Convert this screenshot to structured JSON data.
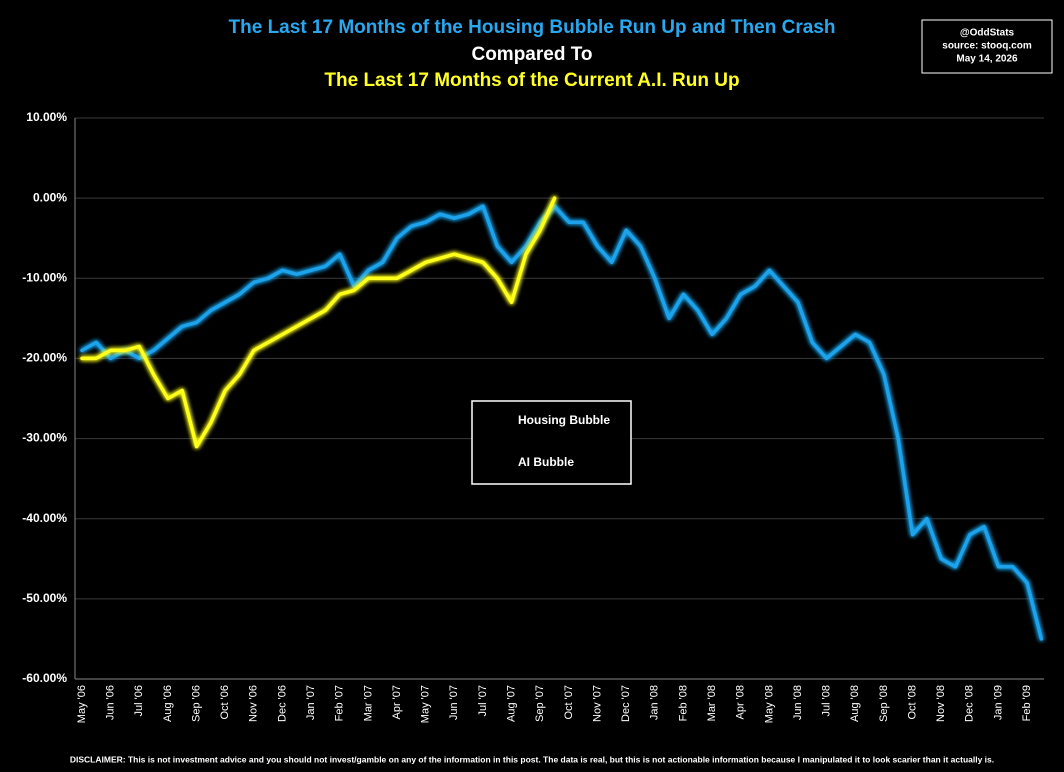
{
  "chart_data": {
    "type": "line",
    "title_lines": [
      "The Last 17 Months of the Housing Bubble Run Up and Then Crash",
      "Compared To",
      "The Last 17 Months of the Current A.I. Run Up"
    ],
    "source_box": [
      "@OddStats",
      "source: stooq.com",
      "May 14, 2026"
    ],
    "disclaimer": "DISCLAIMER: This is not investment advice and you should not invest/gamble on any of the information in this post.   The data is real, but this is not actionable information because I manipulated it to look scarier than it actually is.",
    "categories": [
      "May '06",
      null,
      "Jun '06",
      null,
      "Jul '06",
      null,
      "Aug '06",
      null,
      "Sep '06",
      null,
      "Oct '06",
      null,
      "Nov '06",
      null,
      "Dec '06",
      null,
      "Jan '07",
      null,
      "Feb '07",
      null,
      "Mar '07",
      null,
      "Apr '07",
      null,
      "May '07",
      null,
      "Jun '07",
      null,
      "Jul '07",
      null,
      "Aug '07",
      null,
      "Sep '07",
      null,
      "Oct '07",
      null,
      "Nov '07",
      null,
      "Dec '07",
      null,
      "Jan '08",
      null,
      "Feb '08",
      null,
      "Mar '08",
      null,
      "Apr '08",
      null,
      "May '08",
      null,
      "Jun '08",
      null,
      "Jul '08",
      null,
      "Aug '08",
      null,
      "Sep '08",
      null,
      "Oct '08",
      null,
      "Nov '08",
      null,
      "Dec '08",
      null,
      "Jan '09",
      null,
      "Feb '09",
      null
    ],
    "series": [
      {
        "name": "Housing Bubble",
        "color": "#1fa3ec",
        "values": [
          -19,
          -18,
          -20,
          -19,
          -20,
          -19,
          -17.5,
          -16,
          -15.5,
          -14,
          -13,
          -12,
          -10.5,
          -10,
          -9,
          -9.5,
          -9,
          -8.5,
          -7,
          -11,
          -9,
          -8,
          -5,
          -3.5,
          -3,
          -2,
          -2.5,
          -2,
          -1,
          -6,
          -8,
          -6,
          -3,
          -1,
          -3,
          -3,
          -6,
          -8,
          -4,
          -6,
          -10,
          -15,
          -12,
          -14,
          -17,
          -15,
          -12,
          -11,
          -9,
          -11,
          -13,
          -18,
          -20,
          -18.5,
          -17,
          -18,
          -22,
          -30,
          -42,
          -40,
          -45,
          -46,
          -42,
          -41,
          -46,
          -46,
          -48,
          -55
        ]
      },
      {
        "name": "AI Bubble",
        "color": "#ffff1a",
        "values": [
          -20,
          -20,
          -19,
          -19,
          -18.5,
          -22,
          -25,
          -24,
          -31,
          -28,
          -24,
          -22,
          -19,
          -18,
          -17,
          -16,
          -15,
          -14,
          -12,
          -11.5,
          -10,
          -10,
          -10,
          -9,
          -8,
          -7.5,
          -7,
          -7.5,
          -8,
          -10,
          -13,
          -7,
          -4,
          0,
          null,
          null,
          null,
          null,
          null,
          null,
          null,
          null,
          null,
          null,
          null,
          null,
          null,
          null,
          null,
          null,
          null,
          null,
          null,
          null,
          null,
          null,
          null,
          null,
          null,
          null,
          null,
          null,
          null,
          null,
          null,
          null,
          null,
          null
        ]
      }
    ],
    "ylim": [
      -60,
      10
    ],
    "yticks": [
      {
        "value": 10,
        "label": "10.00%"
      },
      {
        "value": 0,
        "label": "0.00%"
      },
      {
        "value": -10,
        "label": "-10.00%"
      },
      {
        "value": -20,
        "label": "-20.00%"
      },
      {
        "value": -30,
        "label": "-30.00%"
      },
      {
        "value": -40,
        "label": "-40.00%"
      },
      {
        "value": -50,
        "label": "-50.00%"
      },
      {
        "value": -60,
        "label": "-60.00%"
      }
    ],
    "grid": true,
    "legend": "center"
  }
}
